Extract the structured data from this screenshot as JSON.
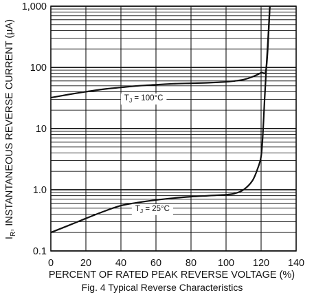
{
  "chart_data": {
    "type": "line",
    "title": "Fig. 4  Typical Reverse Characteristics",
    "xlabel": "PERCENT OF RATED PEAK REVERSE VOLTAGE (%)",
    "ylabel": "IR, INSTANTANEOUS REVERSE CURRENT (µA)",
    "ylabel_main": "I",
    "ylabel_sub": "R",
    "ylabel_rest": ", INSTANTANEOUS REVERSE CURRENT (µA)",
    "xlim": [
      0,
      140
    ],
    "ylim": [
      0.1,
      1000
    ],
    "yscale": "log",
    "grid": true,
    "x_ticks": [
      0,
      20,
      40,
      60,
      80,
      100,
      120,
      140
    ],
    "x_tick_labels": [
      "0",
      "20",
      "40",
      "60",
      "80",
      "100",
      "120",
      "140"
    ],
    "y_ticks": [
      0.1,
      1,
      10,
      100,
      1000
    ],
    "y_tick_labels": [
      "0.1",
      "1.0",
      "10",
      "100",
      "1,000"
    ],
    "series": [
      {
        "label": "TJ = 100°C",
        "label_main": "T",
        "label_sub": "J",
        "label_rest": " = 100°C",
        "label_at": [
          53,
          32
        ],
        "x": [
          0,
          10,
          20,
          30,
          40,
          50,
          60,
          70,
          80,
          90,
          100,
          105,
          110,
          115,
          120,
          123,
          125
        ],
        "y": [
          32,
          36,
          40,
          44,
          47,
          50,
          52,
          54,
          55,
          56,
          58,
          60,
          63,
          70,
          82,
          100,
          1000
        ]
      },
      {
        "label": "TJ = 25°C",
        "label_main": "T",
        "label_sub": "J",
        "label_rest": " = 25°C",
        "label_at": [
          58,
          0.5
        ],
        "x": [
          0,
          10,
          20,
          30,
          40,
          50,
          60,
          70,
          80,
          90,
          100,
          105,
          110,
          115,
          118,
          120,
          121,
          122,
          123,
          124,
          125
        ],
        "y": [
          0.2,
          0.26,
          0.34,
          0.44,
          0.55,
          0.62,
          0.68,
          0.73,
          0.77,
          0.8,
          0.83,
          0.87,
          1.0,
          1.4,
          2.2,
          3.5,
          8,
          30,
          100,
          300,
          1000
        ]
      }
    ]
  }
}
